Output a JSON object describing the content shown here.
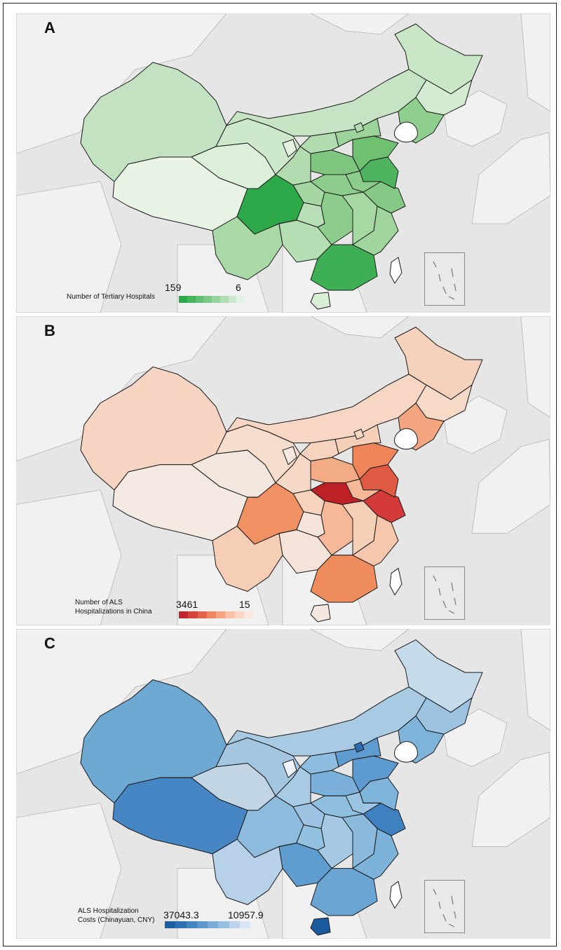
{
  "panels": [
    {
      "letter": "A",
      "legend_title_line1": "Number of Tertiary Hospitals",
      "legend_title_line2": "",
      "legend_max": "159",
      "legend_min": "6",
      "scale_colors": [
        "#2ea94a",
        "#48b45e",
        "#62bf72",
        "#7cc987",
        "#97d39d",
        "#b1ddb4",
        "#cbe7cc",
        "#e3f1e4"
      ],
      "colors": {
        "xinjiang": "#c3e2c1",
        "tibet": "#e9f4e7",
        "qinghai": "#dcefd9",
        "gansu": "#cde8cb",
        "inner_mongolia": "#c6e4c4",
        "heilongjiang": "#c9e6c7",
        "jilin": "#d4ebd2",
        "liaoning": "#8fcf8e",
        "sichuan": "#2ea94a",
        "yunnan": "#a8d9a6",
        "guangxi": "#b6deb3",
        "guangdong": "#3faf56",
        "hainan": "#d9efd6",
        "guizhou": "#b8dfb5",
        "chongqing": "#a4d7a2",
        "hunan": "#8ccd8b",
        "jiangxi": "#a6d8a4",
        "fujian": "#a0d69e",
        "zhejiang": "#84c985",
        "hubei": "#8ccd8b",
        "henan": "#7ec67f",
        "shandong": "#6fc071",
        "jiangsu": "#4fb45f",
        "anhui": "#8ccd8b",
        "shaanxi": "#b2dcb0",
        "shanxi": "#b2dcb0",
        "hebei": "#9cd39a",
        "beijing": "#b2dcb0",
        "ningxia": "#e5f3e3",
        "taiwan": "#ffffff"
      }
    },
    {
      "letter": "B",
      "legend_title_line1": "Number of ALS",
      "legend_title_line2": "Hospitalizations in China",
      "legend_max": "3461",
      "legend_min": "15",
      "scale_colors": [
        "#c1272d",
        "#d5433a",
        "#e3644a",
        "#ee8761",
        "#f5a47f",
        "#f8c0a4",
        "#fad6c3",
        "#fbe7dc"
      ],
      "colors": {
        "xinjiang": "#f7d5c2",
        "tibet": "#f4e9e3",
        "qinghai": "#f3e6de",
        "gansu": "#f6dccd",
        "inner_mongolia": "#f7d7c4",
        "heilongjiang": "#f6d2bd",
        "jilin": "#f7d9c8",
        "liaoning": "#f4a57f",
        "sichuan": "#f09063",
        "yunnan": "#f6cdb5",
        "guangxi": "#f4e3d9",
        "guangdong": "#ef8c5d",
        "hainan": "#f4e7df",
        "guizhou": "#f5e4d9",
        "chongqing": "#f7d2bd",
        "hunan": "#f6b899",
        "jiangxi": "#f6cfb7",
        "fujian": "#f6c7ac",
        "zhejiang": "#d53a3a",
        "hubei": "#be2026",
        "henan": "#f3ab86",
        "shandong": "#ee8458",
        "jiangsu": "#de5a43",
        "anhui": "#f5b998",
        "shaanxi": "#f6d8c6",
        "shanxi": "#f5d3bf",
        "hebei": "#f6cfb8",
        "beijing": "#f7d7c4",
        "ningxia": "#f5e9e2",
        "taiwan": "#ffffff"
      }
    },
    {
      "letter": "C",
      "legend_title_line1": "ALS Hospitalization",
      "legend_title_line2": "Costs (Chinayuan, CNY)",
      "legend_max": "37043.3",
      "legend_min": "10957.9",
      "scale_colors": [
        "#1b5ea2",
        "#2e70b2",
        "#4585c0",
        "#5d98cb",
        "#78abd6",
        "#96bfe0",
        "#b8d3ea",
        "#d7e6f2"
      ],
      "colors": {
        "xinjiang": "#6ea9d4",
        "tibet": "#4786c4",
        "qinghai": "#c1d5e4",
        "gansu": "#a4c6e0",
        "inner_mongolia": "#a8cbe3",
        "heilongjiang": "#c6dbea",
        "jilin": "#9cc3e0",
        "liaoning": "#7eb3da",
        "sichuan": "#8dbbde",
        "yunnan": "#b6d1e8",
        "guangxi": "#5f9ccf",
        "guangdong": "#6aa5d4",
        "hainan": "#1b5aa0",
        "guizhou": "#95c1e1",
        "chongqing": "#9cc4e2",
        "hunan": "#a5c9e4",
        "jiangxi": "#8bbadd",
        "fujian": "#7db2da",
        "zhejiang": "#3f80c1",
        "hubei": "#8fbfdf",
        "henan": "#7ab0d9",
        "shandong": "#5c9acf",
        "jiangsu": "#7eb3da",
        "anhui": "#9bc4e2",
        "shaanxi": "#a8cae3",
        "shanxi": "#8ebcde",
        "hebei": "#5e9bd0",
        "beijing": "#2e6db0",
        "ningxia": "#eef3f7",
        "taiwan": "#ffffff"
      }
    }
  ]
}
